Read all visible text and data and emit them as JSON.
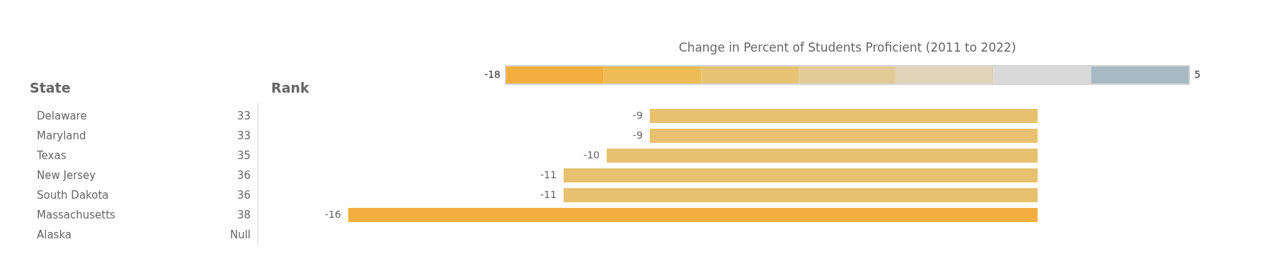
{
  "chart_data": {
    "type": "bar",
    "orientation": "horizontal",
    "ylabel": "State",
    "y2label": "Rank",
    "clabel": "Change in Percent of Students Proficient (2011 to 2022)",
    "categories": [
      "Delaware",
      "Maryland",
      "Texas",
      "New Jersey",
      "South Dakota",
      "Massachusetts",
      "Alaska"
    ],
    "y2_categories": [
      "33",
      "33",
      "35",
      "36",
      "36",
      "38",
      "Null"
    ],
    "values": [
      -9,
      -9,
      -10,
      -11,
      -11,
      -16,
      null
    ],
    "colors": [
      "#e8c170",
      "#e8c170",
      "#e8c170",
      "#e8c170",
      "#e8c170",
      "#f2ae3e",
      "#e8c170"
    ],
    "clim": [
      -18,
      5
    ],
    "cticks": [
      -18,
      5
    ],
    "data_labels": true,
    "grid": false
  }
}
